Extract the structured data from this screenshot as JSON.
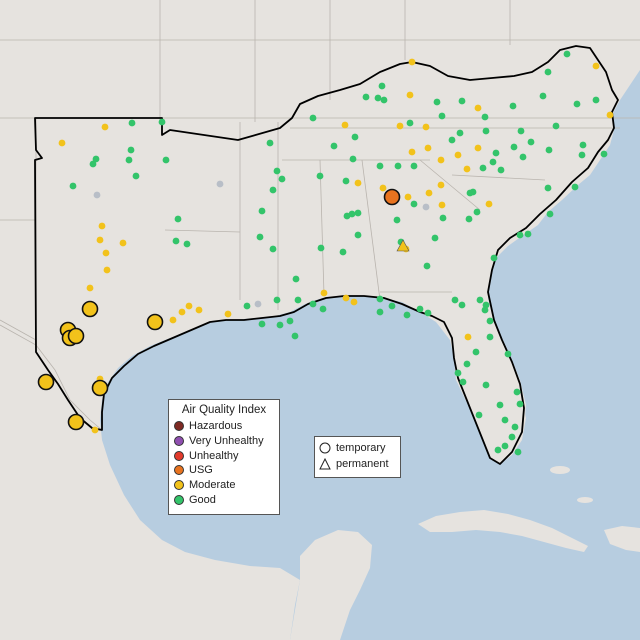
{
  "map": {
    "colors": {
      "water": "#b7cde0",
      "land": "#e6e3df",
      "land_shade": "#d9d4ce",
      "border": "#b9b4ae",
      "region_outline": "#000000"
    }
  },
  "legend": {
    "title": "Air Quality Index",
    "categories": [
      {
        "label": "Hazardous",
        "color": "#7e2a23"
      },
      {
        "label": "Very Unhealthy",
        "color": "#8f4fb0"
      },
      {
        "label": "Unhealthy",
        "color": "#e23a2b"
      },
      {
        "label": "USG",
        "color": "#e8731f"
      },
      {
        "label": "Moderate",
        "color": "#f2c21b"
      },
      {
        "label": "Good",
        "color": "#33c46a"
      }
    ],
    "no_data_color": "#b8bec7"
  },
  "type_legend": {
    "temporary": "temporary",
    "permanent": "permanent"
  }
}
